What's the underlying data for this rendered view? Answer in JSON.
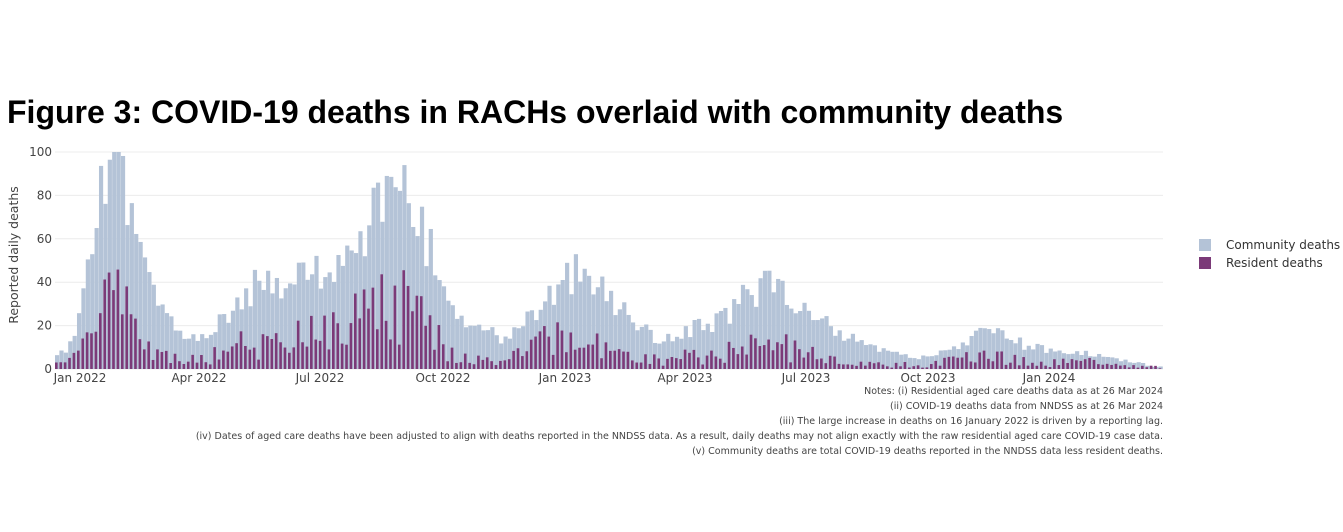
{
  "title": "Figure 3: COVID-19 deaths in RACHs overlaid with community deaths",
  "legend": [
    {
      "label": "Community deaths",
      "color": "#b4c3d7"
    },
    {
      "label": "Resident deaths",
      "color": "#7b3a78"
    }
  ],
  "notes": [
    "Notes: (i) Residential aged care deaths data as at 26 Mar 2024",
    "(ii) COVID-19 deaths data from NNDSS as at 26 Mar 2024",
    "(iii) The large increase in deaths on 16 January 2022 is driven by a reporting lag.",
    "(iv) Dates of aged care deaths have been adjusted to align with deaths reported in the NNDSS data. As a result, daily deaths may not align exactly with the raw residential aged care COVID-19 case data.",
    "(v) Community deaths are total COVID-19 deaths reported in the NNDSS data less resident deaths."
  ],
  "chart_data": {
    "type": "bar",
    "stacked": false,
    "title": "",
    "ylabel": "Reported daily deaths",
    "xlabel": "",
    "ylim": [
      0,
      100
    ],
    "yticks": [
      0,
      20,
      40,
      60,
      80,
      100
    ],
    "xticks": [
      "Jan 2022",
      "Apr 2022",
      "Jul 2022",
      "Oct 2022",
      "Jan 2023",
      "Apr 2023",
      "Jul 2023",
      "Oct 2023",
      "Jan 2024"
    ],
    "x_start": "Jan 2022",
    "x_end": "Mar 2024",
    "series": [
      {
        "name": "Community deaths",
        "color": "#b4c3d7",
        "weekly_values": [
          6,
          11,
          36,
          78,
          92,
          82,
          58,
          38,
          30,
          20,
          16,
          14,
          18,
          26,
          34,
          38,
          40,
          38,
          42,
          44,
          46,
          48,
          54,
          62,
          74,
          82,
          80,
          74,
          60,
          42,
          32,
          24,
          18,
          16,
          14,
          18,
          24,
          32,
          38,
          44,
          48,
          42,
          34,
          26,
          20,
          16,
          14,
          16,
          18,
          20,
          22,
          26,
          32,
          36,
          38,
          34,
          30,
          26,
          22,
          18,
          15,
          12,
          10,
          8,
          6,
          5,
          6,
          8,
          10,
          12,
          16,
          17,
          15,
          12,
          10,
          9,
          8,
          7,
          7,
          6,
          5,
          4,
          3,
          1
        ]
      },
      {
        "name": "Resident deaths",
        "color": "#7b3a78",
        "weekly_values": [
          2,
          4,
          12,
          30,
          35,
          28,
          18,
          12,
          8,
          6,
          5,
          4,
          6,
          8,
          12,
          14,
          14,
          12,
          14,
          16,
          16,
          18,
          20,
          22,
          28,
          32,
          30,
          24,
          18,
          12,
          8,
          6,
          4,
          4,
          4,
          6,
          8,
          12,
          14,
          16,
          18,
          14,
          10,
          8,
          6,
          4,
          4,
          5,
          6,
          6,
          7,
          8,
          10,
          12,
          12,
          10,
          9,
          7,
          5,
          4,
          3,
          3,
          2,
          2,
          2,
          2,
          2,
          3,
          4,
          5,
          6,
          6,
          5,
          4,
          4,
          3,
          3,
          3,
          3,
          3,
          2,
          2,
          1,
          1
        ]
      }
    ]
  }
}
